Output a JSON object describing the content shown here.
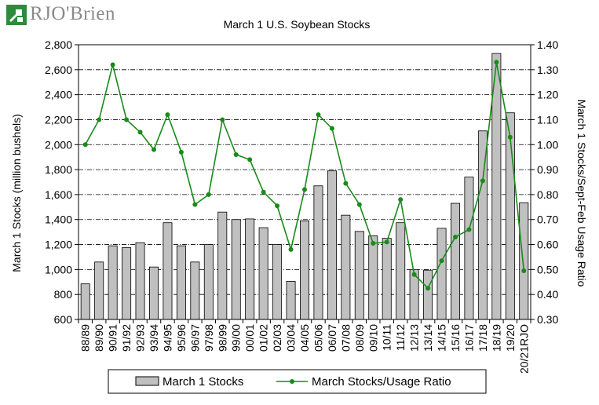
{
  "brand": {
    "name": "RJO'Brien"
  },
  "chart_data": {
    "type": "bar",
    "title": "March 1 U.S. Soybean Stocks",
    "categories": [
      "88/89",
      "89/90",
      "90/91",
      "91/92",
      "92/93",
      "93/94",
      "94/95",
      "95/96",
      "96/97",
      "97/98",
      "98/99",
      "99/00",
      "00/01",
      "01/02",
      "02/03",
      "03/04",
      "04/05",
      "05/06",
      "06/07",
      "07/08",
      "08/09",
      "09/10",
      "10/11",
      "11/12",
      "12/13",
      "13/14",
      "14/15",
      "15/16",
      "16/17",
      "17/18",
      "18/19",
      "19/20",
      "20/21RJO"
    ],
    "series": [
      {
        "name": "March 1 Stocks",
        "type": "bar",
        "axis": "left",
        "color": "#c0c0c0",
        "values": [
          885,
          1060,
          1190,
          1175,
          1215,
          1020,
          1375,
          1190,
          1060,
          1200,
          1460,
          1400,
          1405,
          1335,
          1200,
          905,
          1390,
          1670,
          1790,
          1435,
          1305,
          1270,
          1250,
          1375,
          1000,
          995,
          1330,
          1530,
          1740,
          2110,
          2730,
          2255,
          1535
        ]
      },
      {
        "name": "March Stocks/Usage Ratio",
        "type": "line",
        "axis": "right",
        "color": "#1a8a1a",
        "values": [
          1.0,
          1.1,
          1.32,
          1.1,
          1.05,
          0.98,
          1.12,
          0.97,
          0.76,
          0.8,
          1.1,
          0.96,
          0.94,
          0.81,
          0.755,
          0.58,
          0.82,
          1.12,
          1.065,
          0.845,
          0.76,
          0.605,
          0.61,
          0.78,
          0.48,
          0.425,
          0.535,
          0.63,
          0.66,
          0.855,
          1.33,
          1.03,
          0.495
        ]
      }
    ],
    "y_left": {
      "label": "March 1 Stocks (million bushels)",
      "range": [
        600,
        2800
      ],
      "ticks": [
        "600",
        "800",
        "1,000",
        "1,200",
        "1,400",
        "1,600",
        "1,800",
        "2,000",
        "2,200",
        "2,400",
        "2,600",
        "2,800"
      ]
    },
    "y_right": {
      "label": "March 1 Stocks/Sept-Feb Usage Ratio",
      "range": [
        0.3,
        1.4
      ],
      "ticks": [
        "0.30",
        "0.40",
        "0.50",
        "0.60",
        "0.70",
        "0.80",
        "0.90",
        "1.00",
        "1.10",
        "1.20",
        "1.30",
        "1.40"
      ]
    },
    "grid": "horizontal dash-dot",
    "legend": "bottom"
  }
}
